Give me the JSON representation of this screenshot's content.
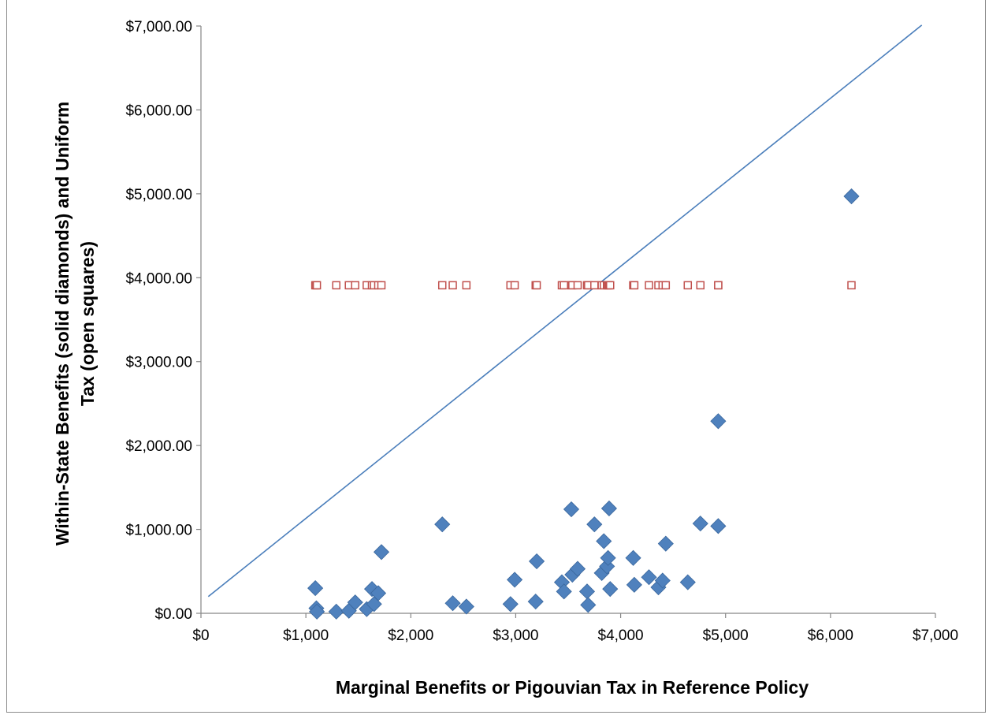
{
  "chart_data": {
    "type": "scatter",
    "xlabel": "Marginal Benefits or Pigouvian Tax in Reference Policy",
    "ylabel_lines": [
      "Within-State Benefits (solid diamonds) and Uniform",
      "Tax (open squares)"
    ],
    "xlim": [
      0,
      7000
    ],
    "ylim": [
      0,
      7000
    ],
    "x_ticks": [
      0,
      1000,
      2000,
      3000,
      4000,
      5000,
      6000,
      7000
    ],
    "x_tick_labels": [
      "$0",
      "$1,000",
      "$2,000",
      "$3,000",
      "$4,000",
      "$5,000",
      "$6,000",
      "$7,000"
    ],
    "y_ticks": [
      0,
      1000,
      2000,
      3000,
      4000,
      5000,
      6000,
      7000
    ],
    "y_tick_labels": [
      "$0.00",
      "$1,000.00",
      "$2,000.00",
      "$3,000.00",
      "$4,000.00",
      "$5,000.00",
      "$6,000.00",
      "$7,000.00"
    ],
    "colors": {
      "diamonds": "#4f81bd",
      "diamond_edge": "#3a679d",
      "squares": "#c0504d",
      "line": "#4a7ebb",
      "axis": "#868686"
    },
    "series": [
      {
        "marker": "diamond-solid",
        "points": [
          [
            1090,
            300
          ],
          [
            1100,
            60
          ],
          [
            1105,
            20
          ],
          [
            1290,
            20
          ],
          [
            1410,
            30
          ],
          [
            1470,
            130
          ],
          [
            1580,
            50
          ],
          [
            1630,
            290
          ],
          [
            1650,
            110
          ],
          [
            1690,
            240
          ],
          [
            1720,
            730
          ],
          [
            2300,
            1060
          ],
          [
            2400,
            120
          ],
          [
            2530,
            80
          ],
          [
            2950,
            110
          ],
          [
            2990,
            400
          ],
          [
            3190,
            140
          ],
          [
            3200,
            620
          ],
          [
            3440,
            370
          ],
          [
            3460,
            260
          ],
          [
            3530,
            1240
          ],
          [
            3540,
            460
          ],
          [
            3590,
            530
          ],
          [
            3680,
            260
          ],
          [
            3690,
            100
          ],
          [
            3750,
            1060
          ],
          [
            3820,
            480
          ],
          [
            3840,
            860
          ],
          [
            3870,
            560
          ],
          [
            3880,
            660
          ],
          [
            3890,
            1250
          ],
          [
            3900,
            290
          ],
          [
            4120,
            660
          ],
          [
            4130,
            340
          ],
          [
            4270,
            430
          ],
          [
            4360,
            310
          ],
          [
            4400,
            390
          ],
          [
            4430,
            830
          ],
          [
            4640,
            370
          ],
          [
            4760,
            1070
          ],
          [
            4930,
            1040
          ],
          [
            4930,
            2290
          ],
          [
            6200,
            4970
          ]
        ]
      },
      {
        "marker": "square-open",
        "y": 3910,
        "x_values": [
          1090,
          1100,
          1105,
          1290,
          1410,
          1470,
          1580,
          1630,
          1650,
          1690,
          1720,
          2300,
          2400,
          2530,
          2950,
          2990,
          3190,
          3200,
          3440,
          3460,
          3530,
          3540,
          3590,
          3680,
          3690,
          3750,
          3820,
          3840,
          3870,
          3880,
          3890,
          3900,
          4120,
          4130,
          4270,
          4360,
          4400,
          4430,
          4640,
          4760,
          4930,
          4930,
          6200
        ]
      },
      {
        "marker": "line",
        "points": [
          [
            70,
            200
          ],
          [
            6870,
            7010
          ]
        ]
      }
    ]
  }
}
